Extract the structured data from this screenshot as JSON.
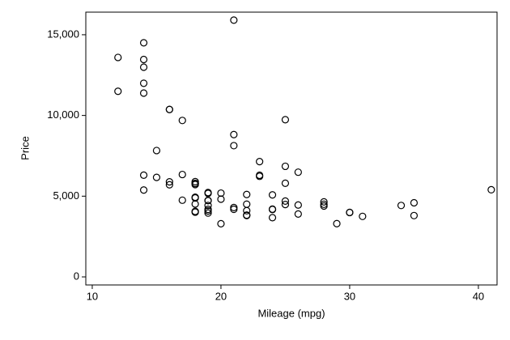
{
  "chart_data": {
    "type": "scatter",
    "x_label": "Mileage (mpg)",
    "y_label": "Price",
    "x": [
      22,
      17,
      22,
      20,
      15,
      18,
      26,
      20,
      16,
      19,
      14,
      14,
      21,
      29,
      16,
      22,
      22,
      24,
      19,
      30,
      18,
      16,
      17,
      28,
      21,
      12,
      12,
      14,
      22,
      14,
      15,
      18,
      14,
      20,
      21,
      19,
      19,
      18,
      19,
      24,
      16,
      28,
      34,
      25,
      26,
      18,
      18,
      18,
      19,
      19,
      19,
      24,
      17,
      23,
      25,
      23,
      35,
      24,
      21,
      21,
      25,
      28,
      30,
      14,
      26,
      35,
      18,
      31,
      18,
      23,
      41,
      25,
      25,
      14
    ],
    "y": [
      4099,
      4749,
      3799,
      4816,
      7827,
      5788,
      4453,
      5189,
      10372,
      4082,
      11385,
      14500,
      15906,
      3299,
      5705,
      4504,
      5104,
      3667,
      3955,
      3984,
      4010,
      5886,
      6342,
      4389,
      4187,
      11497,
      13594,
      13466,
      3829,
      5379,
      6165,
      4516,
      6303,
      3291,
      8814,
      5172,
      4733,
      4890,
      4181,
      4195,
      10371,
      4647,
      4425,
      4482,
      6486,
      4060,
      5798,
      4934,
      5222,
      4723,
      4424,
      4172,
      9690,
      6295,
      9735,
      6229,
      4589,
      5079,
      8129,
      4296,
      5799,
      4499,
      3995,
      12990,
      3895,
      3798,
      5899,
      3748,
      5719,
      7140,
      5397,
      4697,
      6850,
      11995
    ],
    "xlim": [
      9.5,
      41.45
    ],
    "ylim": [
      -500,
      16400
    ],
    "xticks": [
      10,
      20,
      30,
      40
    ],
    "yticks": [
      0,
      {
        "value": 5000,
        "label": "5,000"
      },
      {
        "value": 10000,
        "label": "10,000"
      },
      {
        "value": 15000,
        "label": "15,000"
      }
    ],
    "color": "#000000"
  }
}
